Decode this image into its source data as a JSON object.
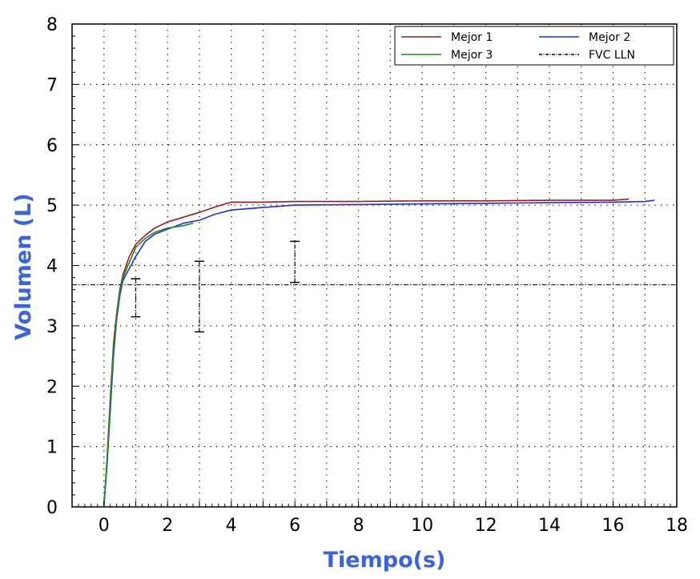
{
  "chart_data": {
    "type": "line",
    "title": "",
    "xlabel": "Tiempo(s)",
    "ylabel": "Volumen (L)",
    "xlim": [
      -1,
      18
    ],
    "ylim": [
      0,
      8
    ],
    "x_ticks": [
      0,
      2,
      4,
      6,
      8,
      10,
      12,
      14,
      16,
      18
    ],
    "y_ticks": [
      0,
      1,
      2,
      3,
      4,
      5,
      6,
      7,
      8
    ],
    "grid": "dotted, every 1 unit",
    "legend_position": "top-right",
    "axis_title_color": "#3a63e0",
    "series": [
      {
        "name": "Mejor 1",
        "color": "#9b1c1c",
        "points": [
          [
            0,
            0
          ],
          [
            0.1,
            0.8
          ],
          [
            0.2,
            1.8
          ],
          [
            0.3,
            2.7
          ],
          [
            0.4,
            3.2
          ],
          [
            0.5,
            3.6
          ],
          [
            0.6,
            3.85
          ],
          [
            0.8,
            4.15
          ],
          [
            1.0,
            4.35
          ],
          [
            1.3,
            4.5
          ],
          [
            1.6,
            4.62
          ],
          [
            2.0,
            4.72
          ],
          [
            2.5,
            4.8
          ],
          [
            3.0,
            4.88
          ],
          [
            3.5,
            4.97
          ],
          [
            4.0,
            5.05
          ],
          [
            5,
            5.05
          ],
          [
            6,
            5.06
          ],
          [
            8,
            5.06
          ],
          [
            10,
            5.07
          ],
          [
            12,
            5.07
          ],
          [
            14,
            5.08
          ],
          [
            16,
            5.08
          ],
          [
            16.5,
            5.1
          ]
        ]
      },
      {
        "name": "Mejor 2",
        "color": "#1f2ee0",
        "points": [
          [
            0,
            0
          ],
          [
            0.1,
            0.7
          ],
          [
            0.2,
            1.6
          ],
          [
            0.3,
            2.5
          ],
          [
            0.4,
            3.1
          ],
          [
            0.5,
            3.5
          ],
          [
            0.6,
            3.75
          ],
          [
            0.8,
            3.95
          ],
          [
            1.0,
            4.15
          ],
          [
            1.3,
            4.4
          ],
          [
            1.6,
            4.52
          ],
          [
            2.0,
            4.6
          ],
          [
            2.5,
            4.7
          ],
          [
            3.0,
            4.75
          ],
          [
            3.5,
            4.85
          ],
          [
            4.0,
            4.92
          ],
          [
            5,
            4.96
          ],
          [
            6,
            5.0
          ],
          [
            8,
            5.01
          ],
          [
            10,
            5.02
          ],
          [
            12,
            5.03
          ],
          [
            14,
            5.04
          ],
          [
            16,
            5.05
          ],
          [
            17,
            5.06
          ],
          [
            17.3,
            5.08
          ]
        ]
      },
      {
        "name": "Mejor 3",
        "color": "#1e8a1e",
        "points": [
          [
            0,
            0
          ],
          [
            0.1,
            0.75
          ],
          [
            0.2,
            1.7
          ],
          [
            0.3,
            2.6
          ],
          [
            0.4,
            3.15
          ],
          [
            0.5,
            3.55
          ],
          [
            0.6,
            3.8
          ],
          [
            0.8,
            4.05
          ],
          [
            1.0,
            4.3
          ],
          [
            1.3,
            4.45
          ],
          [
            1.6,
            4.55
          ],
          [
            2.0,
            4.62
          ],
          [
            2.5,
            4.66
          ],
          [
            2.8,
            4.7
          ]
        ]
      }
    ],
    "reference_line": {
      "name": "FVC LLN",
      "y": 3.68,
      "color": "#000000",
      "style": "dash-dot"
    },
    "error_bars": [
      {
        "x": 1,
        "low": 3.15,
        "high": 3.78
      },
      {
        "x": 3,
        "low": 2.9,
        "high": 4.07
      },
      {
        "x": 6,
        "low": 3.72,
        "high": 4.4
      }
    ]
  }
}
